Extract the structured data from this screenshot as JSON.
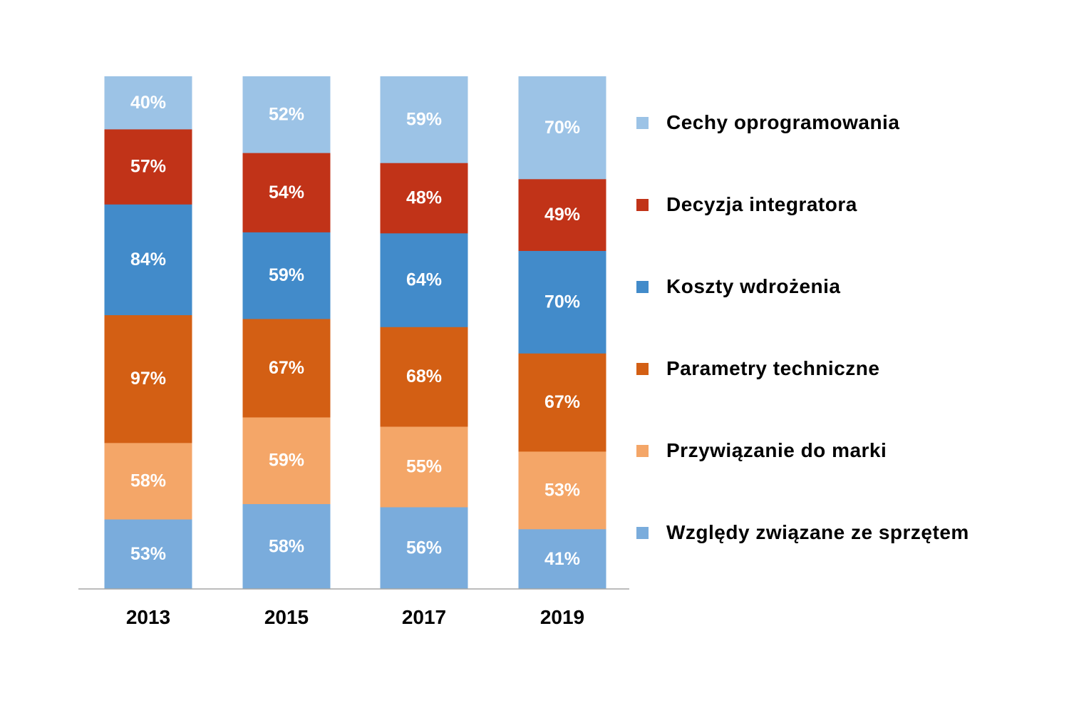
{
  "chart_data": {
    "type": "bar",
    "stacked": true,
    "title": "",
    "xlabel": "",
    "ylabel": "",
    "categories": [
      "2013",
      "2015",
      "2017",
      "2019"
    ],
    "series": [
      {
        "name": "Względy związane ze sprzętem",
        "color": "#7AACDC",
        "values": [
          53,
          58,
          56,
          41
        ],
        "labels": [
          "53%",
          "58%",
          "56%",
          "41%"
        ]
      },
      {
        "name": "Przywiązanie do marki",
        "color": "#F4A668",
        "values": [
          58,
          59,
          55,
          53
        ],
        "labels": [
          "58%",
          "59%",
          "55%",
          "53%"
        ]
      },
      {
        "name": "Parametry techniczne",
        "color": "#D35F14",
        "values": [
          97,
          67,
          68,
          67
        ],
        "labels": [
          "97%",
          "67%",
          "68%",
          "67%"
        ]
      },
      {
        "name": "Koszty wdrożenia",
        "color": "#428BCA",
        "values": [
          84,
          59,
          64,
          70
        ],
        "labels": [
          "84%",
          "59%",
          "64%",
          "70%"
        ]
      },
      {
        "name": "Decyzja integratora",
        "color": "#C13318",
        "values": [
          57,
          54,
          48,
          49
        ],
        "labels": [
          "57%",
          "54%",
          "48%",
          "49%"
        ]
      },
      {
        "name": "Cechy oprogramowania",
        "color": "#9CC3E6",
        "values": [
          40,
          52,
          59,
          70
        ],
        "labels": [
          "40%",
          "52%",
          "59%",
          "70%"
        ]
      }
    ],
    "normalized": true,
    "grid": false,
    "legend_position": "right",
    "axis_color": "#A6A6A6",
    "label_color": "#FFFFFF"
  }
}
